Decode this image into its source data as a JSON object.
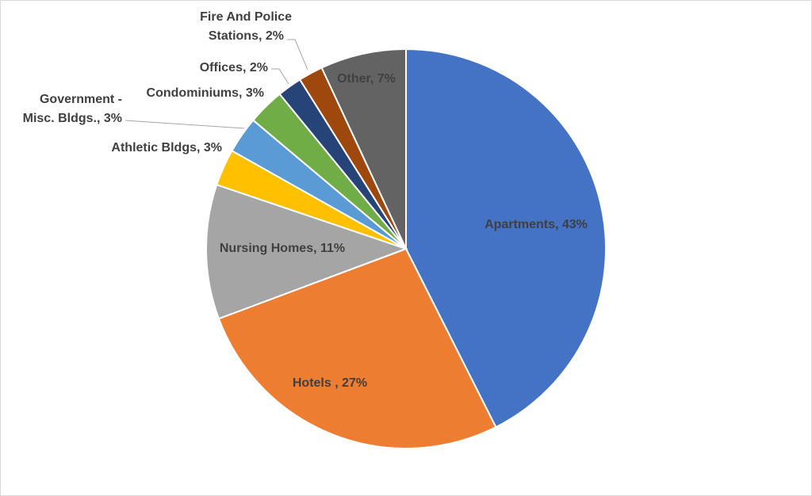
{
  "chart_data": {
    "type": "pie",
    "title": "",
    "slices": [
      {
        "label": "Apartments",
        "value": 43,
        "label_text": "Apartments, 43%",
        "color": "#4472c4"
      },
      {
        "label": "Hotels",
        "value": 27,
        "label_text": "Hotels , 27%",
        "color": "#ed7d31"
      },
      {
        "label": "Nursing Homes",
        "value": 11,
        "label_text": "Nursing Homes, 11%",
        "color": "#a5a5a5"
      },
      {
        "label": "Athletic Bldgs",
        "value": 3,
        "label_text": "Athletic Bldgs, 3%",
        "color": "#ffc000"
      },
      {
        "label": "Government - Misc. Bldgs.",
        "value": 3,
        "label_lines": [
          "Government -",
          "Misc. Bldgs., 3%"
        ],
        "color": "#5b9bd5"
      },
      {
        "label": "Condominiums",
        "value": 3,
        "label_text": "Condominiums, 3%",
        "color": "#70ad47"
      },
      {
        "label": "Offices",
        "value": 2,
        "label_text": "Offices, 2%",
        "color": "#264478"
      },
      {
        "label": "Fire And Police Stations",
        "value": 2,
        "label_lines": [
          "Fire And Police",
          "Stations, 2%"
        ],
        "color": "#9e480e"
      },
      {
        "label": "Other",
        "value": 7,
        "label_text": "Other, 7%",
        "color": "#636363"
      }
    ]
  }
}
